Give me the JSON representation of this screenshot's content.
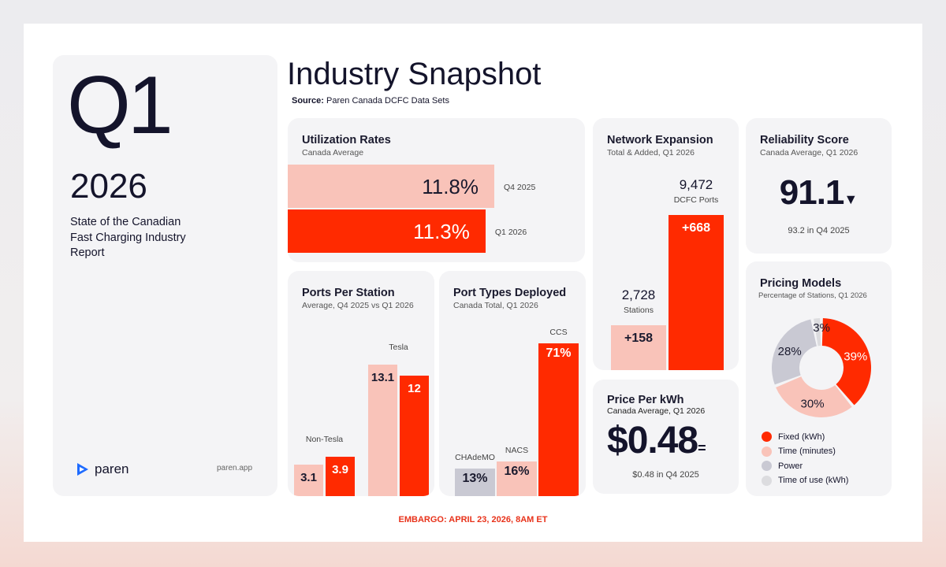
{
  "cover": {
    "quarter": "Q1",
    "year": "2026",
    "subtitle": "State of the Canadian Fast Charging Industry Report",
    "brand": "paren",
    "url": "paren.app"
  },
  "header": {
    "title": "Industry Snapshot",
    "source_label": "Source:",
    "source": "Paren Canada DCFC Data Sets"
  },
  "footer": {
    "embargo": "EMBARGO: APRIL 23, 2026, 8AM ET"
  },
  "colors": {
    "red": "#ff2a00",
    "pink": "#f9c3b9",
    "gray": "#c9c9d3",
    "light": "#dcdcdf"
  },
  "chart_data": [
    {
      "id": "utilization",
      "type": "bar",
      "orientation": "horizontal",
      "title": "Utilization Rates",
      "subtitle": "Canada Average",
      "categories": [
        "Q4 2025",
        "Q1 2026"
      ],
      "values": [
        11.8,
        11.3
      ],
      "labels": [
        "11.8%",
        "11.3%"
      ]
    },
    {
      "id": "network",
      "type": "bar",
      "title": "Network Expansion",
      "subtitle": "Total & Added, Q1 2026",
      "categories": [
        "Stations",
        "DCFC Ports"
      ],
      "values": [
        2728,
        9472
      ],
      "totals": [
        "2,728",
        "9,472"
      ],
      "added": [
        "+158",
        "+668"
      ]
    },
    {
      "id": "ports_per_station",
      "type": "bar",
      "title": "Ports Per Station",
      "subtitle": "Average, Q4 2025 vs Q1 2026",
      "categories": [
        "Non-Tesla",
        "Tesla"
      ],
      "series": [
        {
          "name": "Q4 2025",
          "values": [
            3.1,
            13.1
          ]
        },
        {
          "name": "Q1 2026",
          "values": [
            3.9,
            12.0
          ]
        }
      ]
    },
    {
      "id": "port_types",
      "type": "bar",
      "title": "Port Types Deployed",
      "subtitle": "Canada Total, Q1 2026",
      "categories": [
        "CHAdeMO",
        "NACS",
        "CCS"
      ],
      "values": [
        13,
        16,
        71
      ],
      "labels": [
        "13%",
        "16%",
        "71%"
      ]
    },
    {
      "id": "pricing",
      "type": "pie",
      "title": "Pricing Models",
      "subtitle": "Percentage of Stations, Q1 2026",
      "categories": [
        "Fixed (kWh)",
        "Time (minutes)",
        "Power",
        "Time of use (kWh)"
      ],
      "values": [
        39,
        30,
        28,
        3
      ],
      "labels": [
        "39%",
        "30%",
        "28%",
        "3%"
      ]
    }
  ],
  "reliability": {
    "title": "Reliability Score",
    "subtitle": "Canada Average, Q1 2026",
    "value": "91.1",
    "trend": "▼",
    "previous": "93.2 in Q4 2025"
  },
  "price": {
    "title": "Price Per kWh",
    "subtitle": "Canada Average, Q1 2026",
    "value": "$0.48",
    "trend": "=",
    "previous": "$0.48 in Q4 2025"
  }
}
